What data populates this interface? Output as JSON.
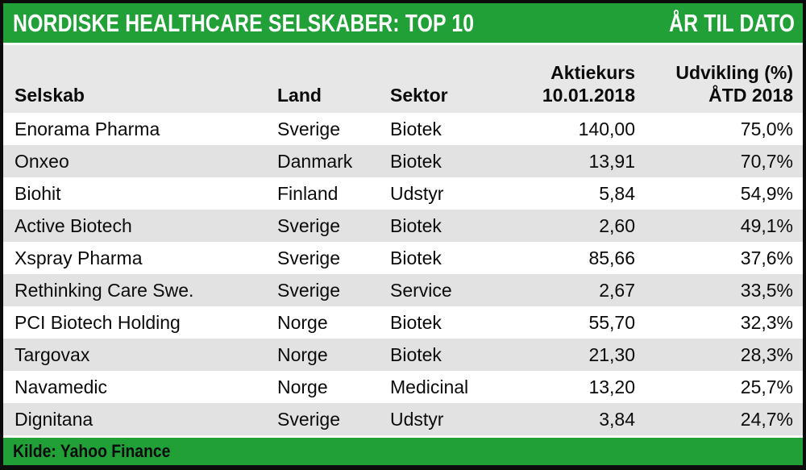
{
  "header": {
    "title": "NORDISKE HEALTHCARE SELSKABER: TOP 10",
    "right_label": "ÅR TIL DATO"
  },
  "table_header": {
    "selskab": "Selskab",
    "land": "Land",
    "sektor": "Sektor",
    "price_line1": "Aktiekurs",
    "price_line2": "10.01.2018",
    "change_line1": "Udvikling (%)",
    "change_line2": "ÅTD 2018"
  },
  "footer": {
    "source": "Kilde: Yahoo Finance"
  },
  "colors": {
    "green": "#21a038",
    "header_gray": "#e7e7e7",
    "alt_row_gray": "#e2e2e2",
    "frame_black": "#0c0c0c"
  },
  "chart_data": {
    "type": "table",
    "title": "NORDISKE HEALTHCARE SELSKABER: TOP 10",
    "subtitle": "ÅR TIL DATO",
    "columns": [
      "Selskab",
      "Land",
      "Sektor",
      "Aktiekurs 10.01.2018",
      "Udvikling (%) ÅTD 2018"
    ],
    "rows": [
      [
        "Enorama Pharma",
        "Sverige",
        "Biotek",
        "140,00",
        "75,0%"
      ],
      [
        "Onxeo",
        "Danmark",
        "Biotek",
        "13,91",
        "70,7%"
      ],
      [
        "Biohit",
        "Finland",
        "Udstyr",
        "5,84",
        "54,9%"
      ],
      [
        "Active Biotech",
        "Sverige",
        "Biotek",
        "2,60",
        "49,1%"
      ],
      [
        "Xspray Pharma",
        "Sverige",
        "Biotek",
        "85,66",
        "37,6%"
      ],
      [
        "Rethinking Care Swe.",
        "Sverige",
        "Service",
        "2,67",
        "33,5%"
      ],
      [
        "PCI Biotech Holding",
        "Norge",
        "Biotek",
        "55,70",
        "32,3%"
      ],
      [
        "Targovax",
        "Norge",
        "Biotek",
        "21,30",
        "28,3%"
      ],
      [
        "Navamedic",
        "Norge",
        "Medicinal",
        "13,20",
        "25,7%"
      ],
      [
        "Dignitana",
        "Sverige",
        "Udstyr",
        "3,84",
        "24,7%"
      ]
    ],
    "source": "Kilde: Yahoo Finance"
  }
}
